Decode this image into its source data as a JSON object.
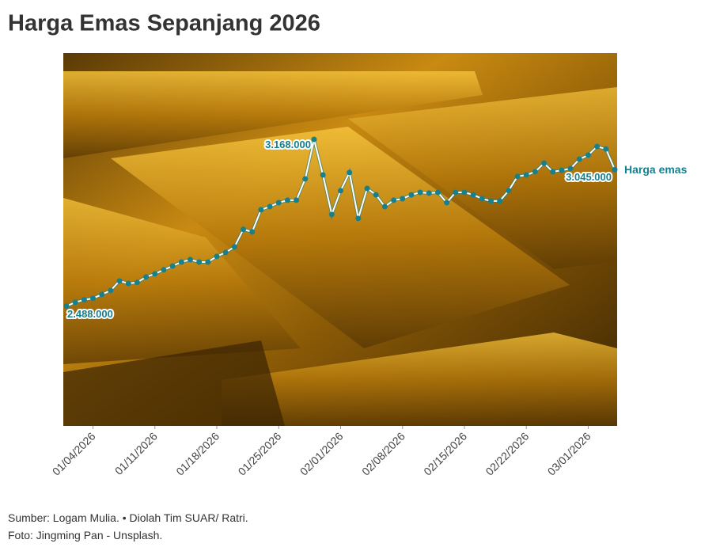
{
  "chart_data": {
    "type": "line",
    "title": "Harga Emas Sepanjang 2026",
    "source": "Sumber: Logam Mulia. • Diolah Tim SUAR/ Ratri.",
    "photo_credit": "Foto: Jingming Pan - Unsplash.",
    "x": [
      "01/01/2026",
      "01/02/2026",
      "01/03/2026",
      "01/04/2026",
      "01/05/2026",
      "01/06/2026",
      "01/07/2026",
      "01/08/2026",
      "01/09/2026",
      "01/10/2026",
      "01/11/2026",
      "01/12/2026",
      "01/13/2026",
      "01/14/2026",
      "01/15/2026",
      "01/16/2026",
      "01/17/2026",
      "01/18/2026",
      "01/19/2026",
      "01/20/2026",
      "01/21/2026",
      "01/22/2026",
      "01/23/2026",
      "01/24/2026",
      "01/25/2026",
      "01/26/2026",
      "01/27/2026",
      "01/28/2026",
      "01/29/2026",
      "01/30/2026",
      "01/31/2026",
      "02/01/2026",
      "02/02/2026",
      "02/03/2026",
      "02/04/2026",
      "02/05/2026",
      "02/06/2026",
      "02/07/2026",
      "02/08/2026",
      "02/09/2026",
      "02/10/2026",
      "02/11/2026",
      "02/12/2026",
      "02/13/2026",
      "02/14/2026",
      "02/15/2026",
      "02/16/2026",
      "02/17/2026",
      "02/18/2026",
      "02/19/2026",
      "02/20/2026",
      "02/21/2026",
      "02/22/2026",
      "02/23/2026",
      "02/24/2026",
      "02/25/2026",
      "02/26/2026",
      "02/27/2026",
      "02/28/2026",
      "03/01/2026",
      "03/02/2026",
      "03/03/2026",
      "03/04/2026"
    ],
    "series": [
      {
        "name": "Harga emas",
        "color": "#16808e",
        "line_color": "#ffffff",
        "values": [
          2488000,
          2504000,
          2514000,
          2520000,
          2536000,
          2552000,
          2591000,
          2581000,
          2585000,
          2607000,
          2620000,
          2636000,
          2652000,
          2668000,
          2678000,
          2668000,
          2668000,
          2691000,
          2707000,
          2730000,
          2801000,
          2791000,
          2881000,
          2894000,
          2910000,
          2920000,
          2920000,
          3007000,
          3168000,
          3023000,
          2862000,
          2959000,
          3033000,
          2846000,
          2968000,
          2942000,
          2894000,
          2920000,
          2926000,
          2942000,
          2952000,
          2949000,
          2952000,
          2910000,
          2952000,
          2952000,
          2942000,
          2926000,
          2917000,
          2917000,
          2959000,
          3017000,
          3023000,
          3036000,
          3071000,
          3036000,
          3042000,
          3049000,
          3087000,
          3104000,
          3139000,
          3129000,
          3045000
        ],
        "value_labels": [
          "2.488.000",
          null,
          null,
          null,
          null,
          null,
          null,
          null,
          null,
          null,
          null,
          null,
          null,
          null,
          null,
          null,
          null,
          null,
          null,
          null,
          null,
          null,
          null,
          null,
          null,
          null,
          null,
          null,
          "3.168.000",
          null,
          null,
          null,
          null,
          null,
          null,
          null,
          null,
          null,
          null,
          null,
          null,
          null,
          null,
          null,
          null,
          null,
          null,
          null,
          null,
          null,
          null,
          null,
          null,
          null,
          null,
          null,
          null,
          null,
          null,
          null,
          null,
          null,
          "3.045.000"
        ]
      }
    ],
    "xlim": [
      "01/01/2026",
      "03/04/2026"
    ],
    "xticks": [
      "01/04/2026",
      "01/11/2026",
      "01/18/2026",
      "01/25/2026",
      "02/01/2026",
      "02/08/2026",
      "02/15/2026",
      "02/22/2026",
      "03/01/2026"
    ],
    "ylim": [
      2000000,
      3520000
    ]
  }
}
